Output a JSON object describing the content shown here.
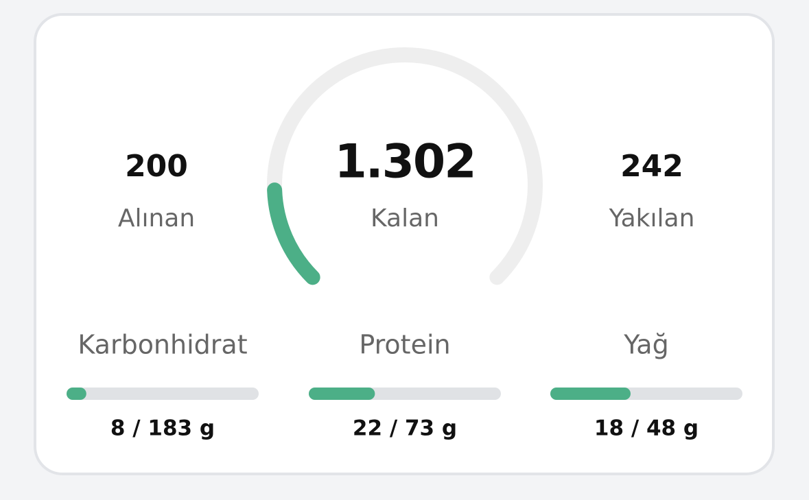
{
  "summary": {
    "consumed": {
      "value": "200",
      "label": "Alınan"
    },
    "remaining": {
      "value": "1.302",
      "label": "Kalan"
    },
    "burned": {
      "value": "242",
      "label": "Yakılan"
    }
  },
  "gauge": {
    "consumed": 200,
    "remaining": 1302,
    "burned": 242
  },
  "macros": [
    {
      "name": "Karbonhidrat",
      "amount": 8,
      "goal": 183,
      "label": "8 / 183 g"
    },
    {
      "name": "Protein",
      "amount": 22,
      "goal": 73,
      "label": "22 / 73 g"
    },
    {
      "name": "Yağ",
      "amount": 18,
      "goal": 48,
      "label": "18 / 48 g"
    }
  ]
}
